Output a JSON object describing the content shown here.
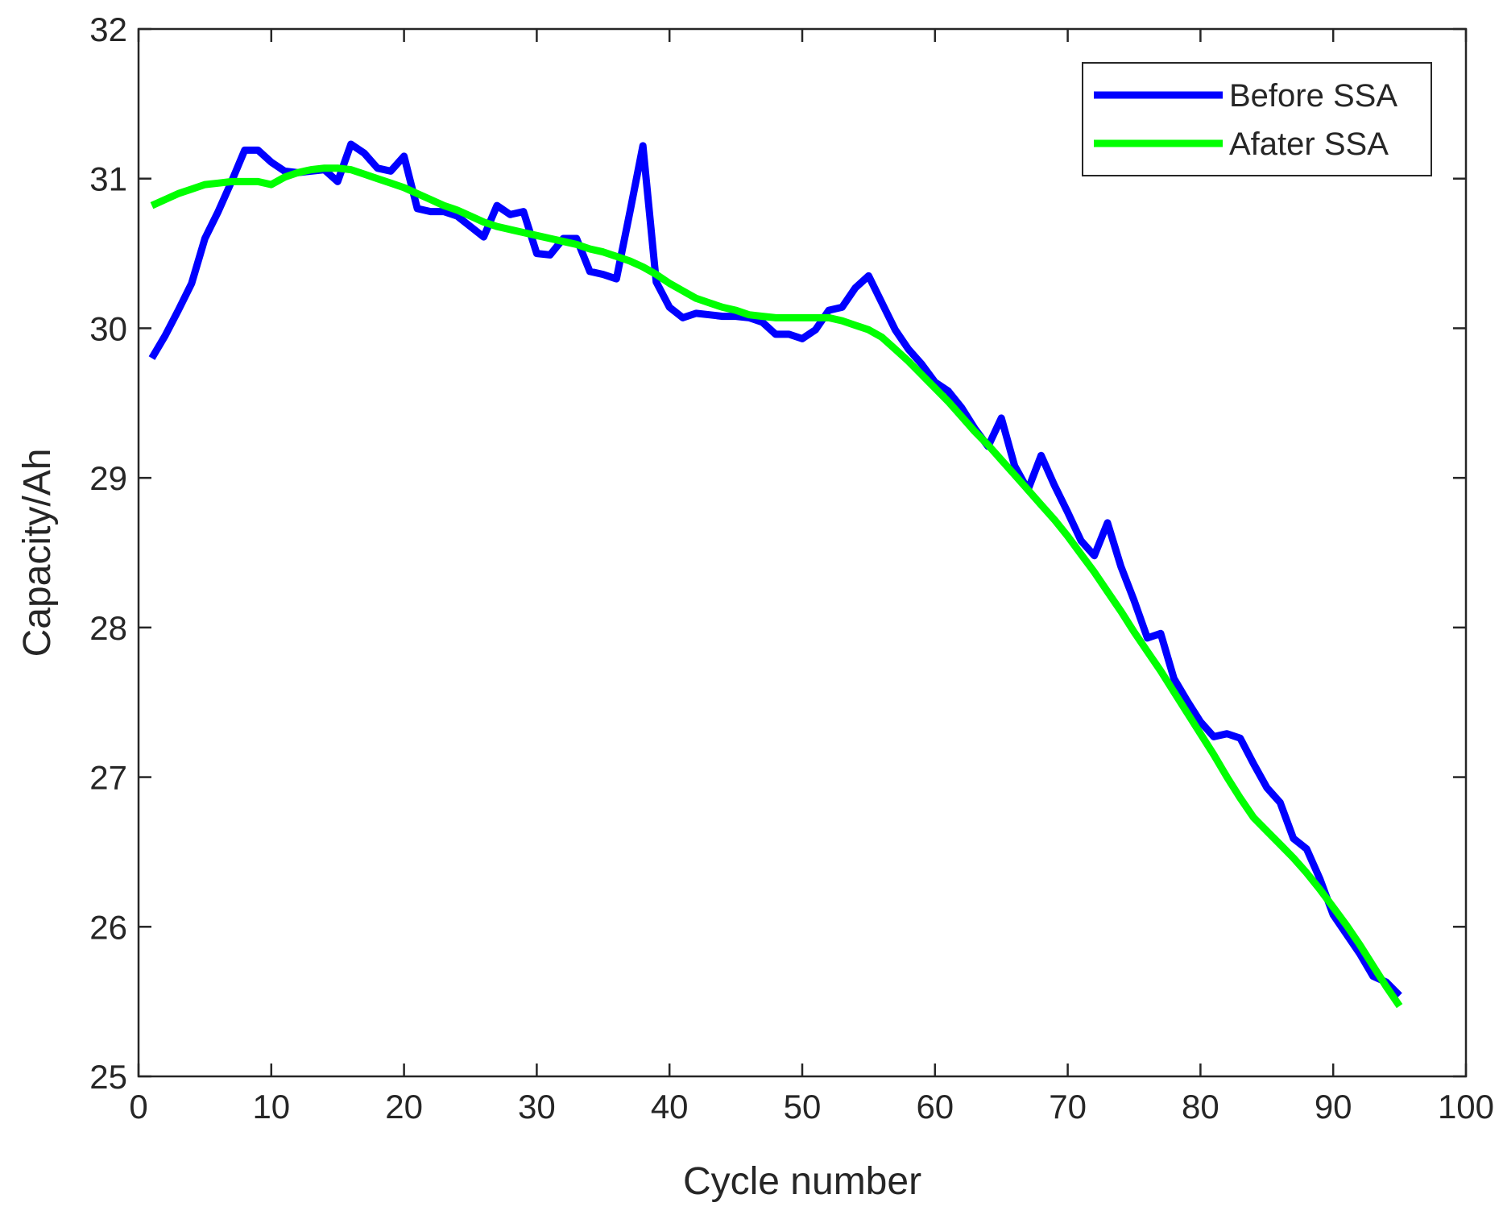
{
  "chart_data": {
    "type": "line",
    "title": "",
    "xlabel": "Cycle number",
    "ylabel": "Capacity/Ah",
    "xlim": [
      0,
      100
    ],
    "ylim": [
      25,
      32
    ],
    "xticks": [
      0,
      10,
      20,
      30,
      40,
      50,
      60,
      70,
      80,
      90,
      100
    ],
    "yticks": [
      25,
      26,
      27,
      28,
      29,
      30,
      31,
      32
    ],
    "grid": false,
    "legend_position": "top-right",
    "series": [
      {
        "name": "Before SSA",
        "color": "#0000ff",
        "x": [
          1,
          2,
          3,
          4,
          5,
          6,
          7,
          8,
          9,
          10,
          11,
          12,
          13,
          14,
          15,
          16,
          17,
          18,
          19,
          20,
          21,
          22,
          23,
          24,
          25,
          26,
          27,
          28,
          29,
          30,
          31,
          32,
          33,
          34,
          35,
          36,
          37,
          38,
          39,
          40,
          41,
          42,
          43,
          44,
          45,
          46,
          47,
          48,
          49,
          50,
          51,
          52,
          53,
          54,
          55,
          56,
          57,
          58,
          59,
          60,
          61,
          62,
          63,
          64,
          65,
          66,
          67,
          68,
          69,
          70,
          71,
          72,
          73,
          74,
          75,
          76,
          77,
          78,
          79,
          80,
          81,
          82,
          83,
          84,
          85,
          86,
          87,
          88,
          89,
          90,
          91,
          92,
          93,
          94,
          95
        ],
        "y": [
          29.8,
          29.95,
          30.12,
          30.3,
          30.6,
          30.78,
          30.98,
          31.19,
          31.19,
          31.11,
          31.05,
          31.04,
          31.05,
          31.06,
          30.98,
          31.23,
          31.17,
          31.07,
          31.05,
          31.15,
          30.8,
          30.78,
          30.78,
          30.75,
          30.68,
          30.61,
          30.82,
          30.76,
          30.78,
          30.5,
          30.49,
          30.6,
          30.6,
          30.38,
          30.36,
          30.33,
          30.77,
          31.22,
          30.31,
          30.14,
          30.07,
          30.1,
          30.09,
          30.08,
          30.08,
          30.07,
          30.04,
          29.96,
          29.96,
          29.93,
          29.99,
          30.12,
          30.14,
          30.27,
          30.35,
          30.17,
          29.99,
          29.86,
          29.76,
          29.64,
          29.58,
          29.47,
          29.33,
          29.21,
          29.4,
          29.08,
          28.92,
          29.15,
          28.95,
          28.77,
          28.58,
          28.48,
          28.7,
          28.41,
          28.18,
          27.93,
          27.96,
          27.66,
          27.51,
          27.37,
          27.27,
          27.29,
          27.26,
          27.09,
          26.93,
          26.83,
          26.59,
          26.52,
          26.32,
          26.08,
          25.95,
          25.82,
          25.67,
          25.63,
          25.54
        ]
      },
      {
        "name": "Afater SSA",
        "color": "#00ff00",
        "x": [
          1,
          2,
          3,
          4,
          5,
          6,
          7,
          8,
          9,
          10,
          11,
          12,
          13,
          14,
          15,
          16,
          17,
          18,
          19,
          20,
          21,
          22,
          23,
          24,
          25,
          26,
          27,
          28,
          29,
          30,
          31,
          32,
          33,
          34,
          35,
          36,
          37,
          38,
          39,
          40,
          41,
          42,
          43,
          44,
          45,
          46,
          47,
          48,
          49,
          50,
          51,
          52,
          53,
          54,
          55,
          56,
          57,
          58,
          59,
          60,
          61,
          62,
          63,
          64,
          65,
          66,
          67,
          68,
          69,
          70,
          71,
          72,
          73,
          74,
          75,
          76,
          77,
          78,
          79,
          80,
          81,
          82,
          83,
          84,
          85,
          86,
          87,
          88,
          89,
          90,
          91,
          92,
          93,
          94,
          95
        ],
        "y": [
          30.82,
          30.86,
          30.9,
          30.93,
          30.96,
          30.97,
          30.98,
          30.98,
          30.98,
          30.96,
          31.01,
          31.04,
          31.06,
          31.07,
          31.07,
          31.06,
          31.03,
          31.0,
          30.97,
          30.94,
          30.9,
          30.86,
          30.82,
          30.79,
          30.75,
          30.71,
          30.68,
          30.66,
          30.64,
          30.62,
          30.6,
          30.58,
          30.56,
          30.53,
          30.51,
          30.48,
          30.45,
          30.41,
          30.36,
          30.3,
          30.25,
          30.2,
          30.17,
          30.14,
          30.12,
          30.09,
          30.08,
          30.07,
          30.07,
          30.07,
          30.07,
          30.07,
          30.05,
          30.02,
          29.99,
          29.94,
          29.86,
          29.78,
          29.69,
          29.6,
          29.51,
          29.41,
          29.31,
          29.22,
          29.12,
          29.02,
          28.92,
          28.82,
          28.72,
          28.61,
          28.49,
          28.37,
          28.24,
          28.11,
          27.97,
          27.84,
          27.71,
          27.57,
          27.43,
          27.29,
          27.15,
          27.0,
          26.86,
          26.73,
          26.64,
          26.55,
          26.46,
          26.36,
          26.25,
          26.13,
          26.01,
          25.88,
          25.74,
          25.6,
          25.47
        ]
      }
    ]
  }
}
